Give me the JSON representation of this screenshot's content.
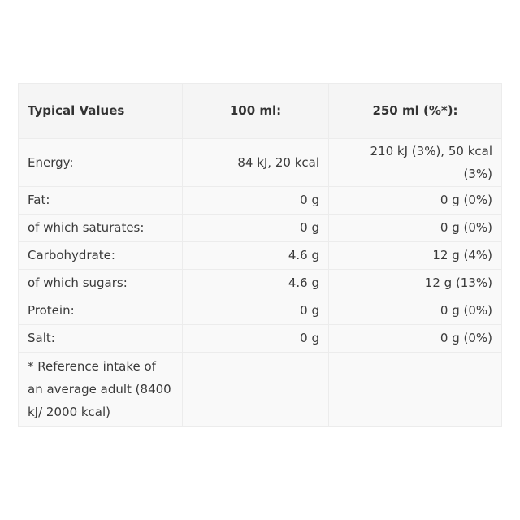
{
  "table": {
    "headers": [
      "Typical Values",
      "100 ml:",
      "250 ml (%*):"
    ],
    "rows": [
      {
        "label": "Energy:",
        "per100": "84 kJ, 20 kcal",
        "per250": "210 kJ (3%), 50 kcal (3%)"
      },
      {
        "label": "Fat:",
        "per100": "0 g",
        "per250": "0 g (0%)"
      },
      {
        "label": "of which saturates:",
        "per100": "0 g",
        "per250": "0 g (0%)"
      },
      {
        "label": "Carbohydrate:",
        "per100": "4.6 g",
        "per250": "12 g (4%)"
      },
      {
        "label": "of which sugars:",
        "per100": "4.6 g",
        "per250": "12 g (13%)"
      },
      {
        "label": "Protein:",
        "per100": "0 g",
        "per250": "0 g (0%)"
      },
      {
        "label": "Salt:",
        "per100": "0 g",
        "per250": "0 g (0%)"
      }
    ],
    "footnote": "* Reference intake of an average adult (8400 kJ/ 2000 kcal)"
  }
}
